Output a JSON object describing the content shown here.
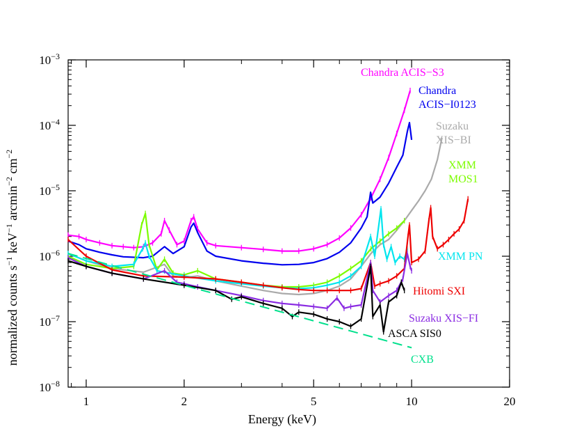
{
  "chart_data": {
    "type": "line",
    "xscale": "log",
    "yscale": "log",
    "xlim": [
      0.88,
      20
    ],
    "ylim": [
      1e-08,
      0.001
    ],
    "xlabel": "Energy (keV)",
    "ylabel_parts": {
      "main": "normalized counts s",
      "sup1": "−1",
      "mid1": " keV",
      "sup2": "−1",
      "mid2": " arcmin",
      "sup3": "−2",
      "mid3": " cm",
      "sup4": "−2"
    },
    "x_ticks": [
      {
        "value": 1,
        "label": "1"
      },
      {
        "value": 2,
        "label": "2"
      },
      {
        "value": 5,
        "label": "5"
      },
      {
        "value": 10,
        "label": "10"
      },
      {
        "value": 20,
        "label": "20"
      }
    ],
    "y_ticks": [
      {
        "value": 1e-08,
        "base": "10",
        "exp": "−8"
      },
      {
        "value": 1e-07,
        "base": "10",
        "exp": "−7"
      },
      {
        "value": 1e-06,
        "base": "10",
        "exp": "−6"
      },
      {
        "value": 1e-05,
        "base": "10",
        "exp": "−5"
      },
      {
        "value": 0.0001,
        "base": "10",
        "exp": "−4"
      },
      {
        "value": 0.001,
        "base": "10",
        "exp": "−3"
      }
    ],
    "grid": false,
    "legend": "inline labels beside each curve",
    "series": [
      {
        "name": "Chandra ACIS−S3",
        "label_lines": [
          "Chandra ACIS−S3"
        ],
        "color": "#ff00ff",
        "markers": true,
        "points": [
          [
            0.88,
            2.1e-06
          ],
          [
            0.95,
            2e-06
          ],
          [
            1.0,
            1.8e-06
          ],
          [
            1.1,
            1.6e-06
          ],
          [
            1.2,
            1.45e-06
          ],
          [
            1.3,
            1.4e-06
          ],
          [
            1.4,
            1.35e-06
          ],
          [
            1.5,
            1.4e-06
          ],
          [
            1.6,
            1.6e-06
          ],
          [
            1.7,
            2.2e-06
          ],
          [
            1.74,
            3.5e-06
          ],
          [
            1.8,
            2.5e-06
          ],
          [
            1.9,
            1.5e-06
          ],
          [
            2.0,
            1.7e-06
          ],
          [
            2.1,
            3.5e-06
          ],
          [
            2.14,
            4e-06
          ],
          [
            2.2,
            2.6e-06
          ],
          [
            2.35,
            1.6e-06
          ],
          [
            2.5,
            1.45e-06
          ],
          [
            3.0,
            1.35e-06
          ],
          [
            3.5,
            1.27e-06
          ],
          [
            4.0,
            1.2e-06
          ],
          [
            4.5,
            1.2e-06
          ],
          [
            5.0,
            1.3e-06
          ],
          [
            5.5,
            1.5e-06
          ],
          [
            6.0,
            1.9e-06
          ],
          [
            6.5,
            2.7e-06
          ],
          [
            7.0,
            4.3e-06
          ],
          [
            7.5,
            7.8e-06
          ],
          [
            8.0,
            1.5e-05
          ],
          [
            8.5,
            3.2e-05
          ],
          [
            9.0,
            7.5e-05
          ],
          [
            9.5,
            0.00017
          ],
          [
            9.9,
            0.00034
          ]
        ]
      },
      {
        "name": "Chandra ACIS−I0123",
        "label_lines": [
          "Chandra",
          "ACIS−I0123"
        ],
        "color": "#0000ee",
        "markers": false,
        "points": [
          [
            0.88,
            1.7e-06
          ],
          [
            0.95,
            1.5e-06
          ],
          [
            1.0,
            1.3e-06
          ],
          [
            1.1,
            1.15e-06
          ],
          [
            1.2,
            1.05e-06
          ],
          [
            1.3,
            9.8e-07
          ],
          [
            1.5,
            9.5e-07
          ],
          [
            1.6,
            1e-06
          ],
          [
            1.74,
            1.4e-06
          ],
          [
            1.85,
            1.1e-06
          ],
          [
            2.0,
            1.4e-06
          ],
          [
            2.1,
            2.8e-06
          ],
          [
            2.14,
            3.2e-06
          ],
          [
            2.2,
            2.3e-06
          ],
          [
            2.35,
            1.2e-06
          ],
          [
            2.5,
            1e-06
          ],
          [
            3.0,
            8.5e-07
          ],
          [
            3.5,
            7.8e-07
          ],
          [
            4.0,
            7.4e-07
          ],
          [
            4.5,
            7.5e-07
          ],
          [
            5.0,
            8e-07
          ],
          [
            5.5,
            9.2e-07
          ],
          [
            6.0,
            1.15e-06
          ],
          [
            6.5,
            1.6e-06
          ],
          [
            7.0,
            2.7e-06
          ],
          [
            7.3,
            4e-06
          ],
          [
            7.48,
            9.5e-06
          ],
          [
            7.6,
            6.5e-06
          ],
          [
            8.0,
            8e-06
          ],
          [
            8.5,
            1.3e-05
          ],
          [
            9.0,
            2.3e-05
          ],
          [
            9.4,
            3.5e-05
          ],
          [
            9.7,
            8e-05
          ],
          [
            9.85,
            0.00011
          ],
          [
            10.0,
            6e-05
          ]
        ]
      },
      {
        "name": "Suzaku XIS−BI",
        "label_lines": [
          "Suzaku",
          "XIS−BI"
        ],
        "color": "#aaaaaa",
        "markers": false,
        "points": [
          [
            0.88,
            1.1e-06
          ],
          [
            1.0,
            8.5e-07
          ],
          [
            1.2,
            6.5e-07
          ],
          [
            1.5,
            5.7e-07
          ],
          [
            1.74,
            7.5e-07
          ],
          [
            1.85,
            5e-07
          ],
          [
            2.0,
            4.7e-07
          ],
          [
            2.2,
            5e-07
          ],
          [
            2.5,
            4.2e-07
          ],
          [
            3.0,
            3.5e-07
          ],
          [
            3.5,
            3e-07
          ],
          [
            4.0,
            2.7e-07
          ],
          [
            4.5,
            2.6e-07
          ],
          [
            5.0,
            2.7e-07
          ],
          [
            5.5,
            3e-07
          ],
          [
            6.0,
            3.5e-07
          ],
          [
            6.5,
            4.5e-07
          ],
          [
            7.0,
            7e-07
          ],
          [
            7.5,
            1.1e-06
          ],
          [
            8.0,
            1.5e-06
          ],
          [
            8.5,
            1.8e-06
          ],
          [
            9.0,
            2.5e-06
          ],
          [
            9.5,
            3.5e-06
          ],
          [
            10.0,
            5e-06
          ],
          [
            10.5,
            7e-06
          ],
          [
            11.0,
            1e-05
          ],
          [
            11.5,
            1.5e-05
          ],
          [
            12.0,
            3e-05
          ],
          [
            12.4,
            6.5e-05
          ]
        ]
      },
      {
        "name": "XMM MOS1",
        "label_lines": [
          "XMM",
          "MOS1"
        ],
        "color": "#7cfc00",
        "markers": true,
        "points": [
          [
            0.88,
            1e-06
          ],
          [
            1.0,
            7.5e-07
          ],
          [
            1.2,
            6.5e-07
          ],
          [
            1.4,
            7e-07
          ],
          [
            1.48,
            3e-06
          ],
          [
            1.52,
            4.5e-06
          ],
          [
            1.56,
            1.5e-06
          ],
          [
            1.65,
            6.2e-07
          ],
          [
            1.74,
            9e-07
          ],
          [
            1.85,
            5.5e-07
          ],
          [
            2.0,
            5.2e-07
          ],
          [
            2.2,
            6e-07
          ],
          [
            2.5,
            4.5e-07
          ],
          [
            3.0,
            4e-07
          ],
          [
            3.5,
            3.6e-07
          ],
          [
            4.0,
            3.4e-07
          ],
          [
            4.5,
            3.4e-07
          ],
          [
            5.0,
            3.6e-07
          ],
          [
            5.5,
            4e-07
          ],
          [
            6.0,
            5e-07
          ],
          [
            6.5,
            6.5e-07
          ],
          [
            7.0,
            8.5e-07
          ],
          [
            7.5,
            1.3e-06
          ],
          [
            8.0,
            1.7e-06
          ],
          [
            8.5,
            2.2e-06
          ],
          [
            9.0,
            2.7e-06
          ],
          [
            9.5,
            3.5e-06
          ]
        ]
      },
      {
        "name": "XMM PN",
        "label_lines": [
          "XMM PN"
        ],
        "color": "#00e5ee",
        "markers": true,
        "points": [
          [
            0.88,
            1.1e-06
          ],
          [
            1.0,
            8.5e-07
          ],
          [
            1.2,
            7e-07
          ],
          [
            1.4,
            7.5e-07
          ],
          [
            1.49,
            1.3e-06
          ],
          [
            1.52,
            1.6e-06
          ],
          [
            1.56,
            1e-06
          ],
          [
            1.65,
            6e-07
          ],
          [
            2.0,
            5e-07
          ],
          [
            2.5,
            4.2e-07
          ],
          [
            3.0,
            3.8e-07
          ],
          [
            3.5,
            3.5e-07
          ],
          [
            4.0,
            3.3e-07
          ],
          [
            4.5,
            3.2e-07
          ],
          [
            5.0,
            3.3e-07
          ],
          [
            5.5,
            3.6e-07
          ],
          [
            6.0,
            4e-07
          ],
          [
            6.5,
            5e-07
          ],
          [
            7.0,
            7e-07
          ],
          [
            7.48,
            2e-06
          ],
          [
            7.7,
            1e-06
          ],
          [
            8.05,
            5.3e-06
          ],
          [
            8.2,
            1.5e-06
          ],
          [
            8.4,
            9e-07
          ],
          [
            8.65,
            1.4e-06
          ],
          [
            8.9,
            8e-07
          ],
          [
            9.2,
            1e-06
          ],
          [
            9.5,
            9e-07
          ],
          [
            9.7,
            1.3e-06
          ]
        ]
      },
      {
        "name": "Hitomi SXI",
        "label_lines": [
          "Hitomi SXI"
        ],
        "color": "#ee0000",
        "markers": true,
        "points": [
          [
            0.88,
            1.8e-06
          ],
          [
            1.0,
            1e-06
          ],
          [
            1.2,
            6.2e-07
          ],
          [
            1.5,
            5e-07
          ],
          [
            2.0,
            4.8e-07
          ],
          [
            2.5,
            4.5e-07
          ],
          [
            3.0,
            4e-07
          ],
          [
            3.5,
            3.6e-07
          ],
          [
            4.0,
            3.3e-07
          ],
          [
            4.5,
            3.1e-07
          ],
          [
            5.0,
            3e-07
          ],
          [
            5.5,
            3e-07
          ],
          [
            6.0,
            3e-07
          ],
          [
            6.5,
            3e-07
          ],
          [
            7.0,
            3.2e-07
          ],
          [
            7.48,
            8e-07
          ],
          [
            7.7,
            3.5e-07
          ],
          [
            8.0,
            3.8e-07
          ],
          [
            8.5,
            4.2e-07
          ],
          [
            9.0,
            5e-07
          ],
          [
            9.5,
            6.5e-07
          ],
          [
            9.75,
            2e-06
          ],
          [
            9.85,
            3e-06
          ],
          [
            10.0,
            8e-07
          ],
          [
            10.5,
            9e-07
          ],
          [
            11.0,
            1.2e-06
          ],
          [
            11.3,
            3.5e-06
          ],
          [
            11.45,
            5.5e-06
          ],
          [
            11.6,
            2e-06
          ],
          [
            12.0,
            1.3e-06
          ],
          [
            12.5,
            1.5e-06
          ],
          [
            13.0,
            1.8e-06
          ],
          [
            13.5,
            2.2e-06
          ],
          [
            14.0,
            2.6e-06
          ],
          [
            14.5,
            3.5e-06
          ],
          [
            14.9,
            7.5e-06
          ]
        ]
      },
      {
        "name": "Suzaku XIS−FI",
        "label_lines": [
          "Suzaku XIS−FI"
        ],
        "color": "#8a2be2",
        "markers": true,
        "points": [
          [
            0.88,
            9.5e-07
          ],
          [
            1.0,
            7e-07
          ],
          [
            1.2,
            5.5e-07
          ],
          [
            1.5,
            4.5e-07
          ],
          [
            1.74,
            6e-07
          ],
          [
            1.9,
            4e-07
          ],
          [
            2.0,
            3.8e-07
          ],
          [
            2.2,
            3.4e-07
          ],
          [
            2.5,
            3e-07
          ],
          [
            3.0,
            2.5e-07
          ],
          [
            3.5,
            2.1e-07
          ],
          [
            4.0,
            1.9e-07
          ],
          [
            4.5,
            1.8e-07
          ],
          [
            5.0,
            1.7e-07
          ],
          [
            5.5,
            1.6e-07
          ],
          [
            5.9,
            2.3e-07
          ],
          [
            6.2,
            1.6e-07
          ],
          [
            6.5,
            1.7e-07
          ],
          [
            7.0,
            1.8e-07
          ],
          [
            7.48,
            8e-07
          ],
          [
            7.6,
            3e-07
          ],
          [
            8.0,
            2e-07
          ],
          [
            8.5,
            2.5e-07
          ],
          [
            9.0,
            3e-07
          ],
          [
            9.4,
            4.5e-07
          ],
          [
            9.7,
            1.1e-06
          ],
          [
            9.9,
            7e-07
          ],
          [
            10.0,
            6e-07
          ]
        ]
      },
      {
        "name": "ASCA SIS0",
        "label_lines": [
          "ASCA SIS0"
        ],
        "color": "#000000",
        "markers": true,
        "points": [
          [
            0.88,
            8.5e-07
          ],
          [
            1.0,
            7e-07
          ],
          [
            1.2,
            5.5e-07
          ],
          [
            1.5,
            4.5e-07
          ],
          [
            2.0,
            3.6e-07
          ],
          [
            2.5,
            3e-07
          ],
          [
            2.8,
            2.2e-07
          ],
          [
            3.0,
            2.4e-07
          ],
          [
            3.5,
            1.9e-07
          ],
          [
            4.0,
            1.6e-07
          ],
          [
            4.3,
            1.2e-07
          ],
          [
            4.5,
            1.4e-07
          ],
          [
            5.0,
            1.3e-07
          ],
          [
            5.5,
            1.1e-07
          ],
          [
            6.0,
            1e-07
          ],
          [
            6.5,
            8.5e-08
          ],
          [
            7.0,
            1.1e-07
          ],
          [
            7.48,
            7e-07
          ],
          [
            7.6,
            1.2e-07
          ],
          [
            8.0,
            1.8e-07
          ],
          [
            8.2,
            7e-08
          ],
          [
            8.5,
            2e-07
          ],
          [
            9.0,
            2.5e-07
          ],
          [
            9.3,
            4e-07
          ],
          [
            9.5,
            3e-07
          ]
        ]
      },
      {
        "name": "CXB",
        "label_lines": [
          "CXB"
        ],
        "color": "#00e08c",
        "markers": false,
        "dashed": true,
        "points": [
          [
            0.88,
            1.1e-06
          ],
          [
            10.0,
            4e-08
          ]
        ]
      }
    ]
  }
}
